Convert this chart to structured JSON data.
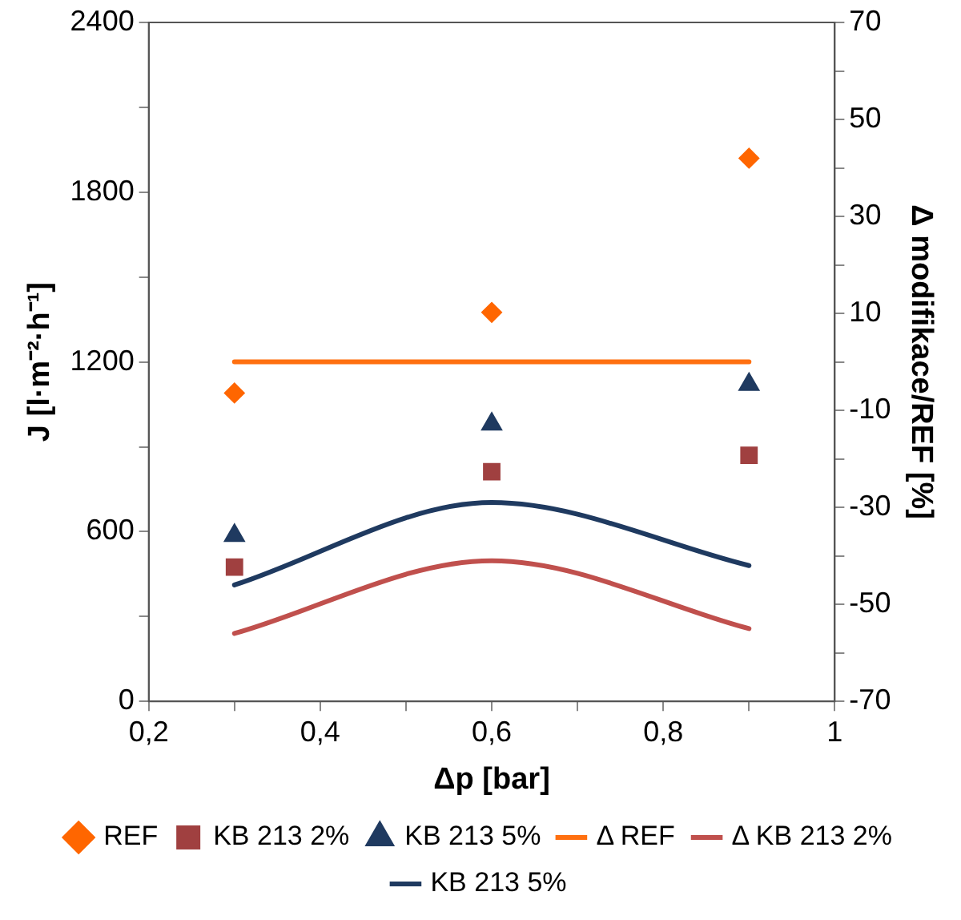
{
  "chart_data": {
    "type": "scatter",
    "xlabel": "Δp [bar]",
    "ylabel": "J [l·m⁻²·h⁻¹]",
    "y2label": "Δ modifikace/REF [%]",
    "x": [
      0.3,
      0.6,
      0.9
    ],
    "series": [
      {
        "name": "REF",
        "marker": "diamond",
        "color": "#ff6600",
        "values": [
          1090,
          1375,
          1920
        ]
      },
      {
        "name": "KB 213 2%",
        "marker": "square",
        "color": "#a04040",
        "values": [
          475,
          812,
          870
        ]
      },
      {
        "name": "KB 213 5%",
        "marker": "triangle",
        "color": "#1f3a60",
        "values": [
          586,
          980,
          1120
        ]
      },
      {
        "name": "Δ REF",
        "type": "line",
        "marker": "none",
        "line_style": "solid",
        "axis": "y2",
        "color": "#ff7010",
        "values": [
          0,
          0,
          0
        ]
      },
      {
        "name": "Δ KB 213 2%",
        "type": "line",
        "marker": "none",
        "line_style": "solid",
        "axis": "y2",
        "color": "#c0504d",
        "values": [
          -56,
          -41,
          -55
        ]
      },
      {
        "name": "KB 213 5%",
        "type": "line",
        "marker": "none",
        "line_style": "solid",
        "axis": "y2",
        "color": "#1f3a60",
        "values": [
          -46,
          -29,
          -42
        ]
      }
    ],
    "xlim": [
      0.2,
      1
    ],
    "xticks": [
      {
        "value": 0.2,
        "label": "0,2"
      },
      {
        "value": 0.3,
        "label": null
      },
      {
        "value": 0.4,
        "label": "0,4"
      },
      {
        "value": 0.5,
        "label": null
      },
      {
        "value": 0.6,
        "label": "0,6"
      },
      {
        "value": 0.7,
        "label": null
      },
      {
        "value": 0.8,
        "label": "0,8"
      },
      {
        "value": 0.9,
        "label": null
      },
      {
        "value": 1,
        "label": "1"
      }
    ],
    "ylim": [
      0,
      2400
    ],
    "yticks": [
      0,
      {
        "value": 300,
        "label": null
      },
      600,
      {
        "value": 900,
        "label": null
      },
      1200,
      {
        "value": 1500,
        "label": null
      },
      1800,
      {
        "value": 2100,
        "label": null
      },
      2400
    ],
    "y2lim": [
      -70,
      70
    ],
    "y2ticks": [
      -70,
      {
        "value": -60,
        "label": null
      },
      -50,
      {
        "value": -40,
        "label": null
      },
      -30,
      {
        "value": -20,
        "label": null
      },
      -10,
      {
        "value": 0,
        "label": null
      },
      10,
      {
        "value": 20,
        "label": null
      },
      30,
      {
        "value": 40,
        "label": null
      },
      50,
      {
        "value": 60,
        "label": null
      },
      70
    ],
    "grid": false,
    "legend": "bottom"
  }
}
